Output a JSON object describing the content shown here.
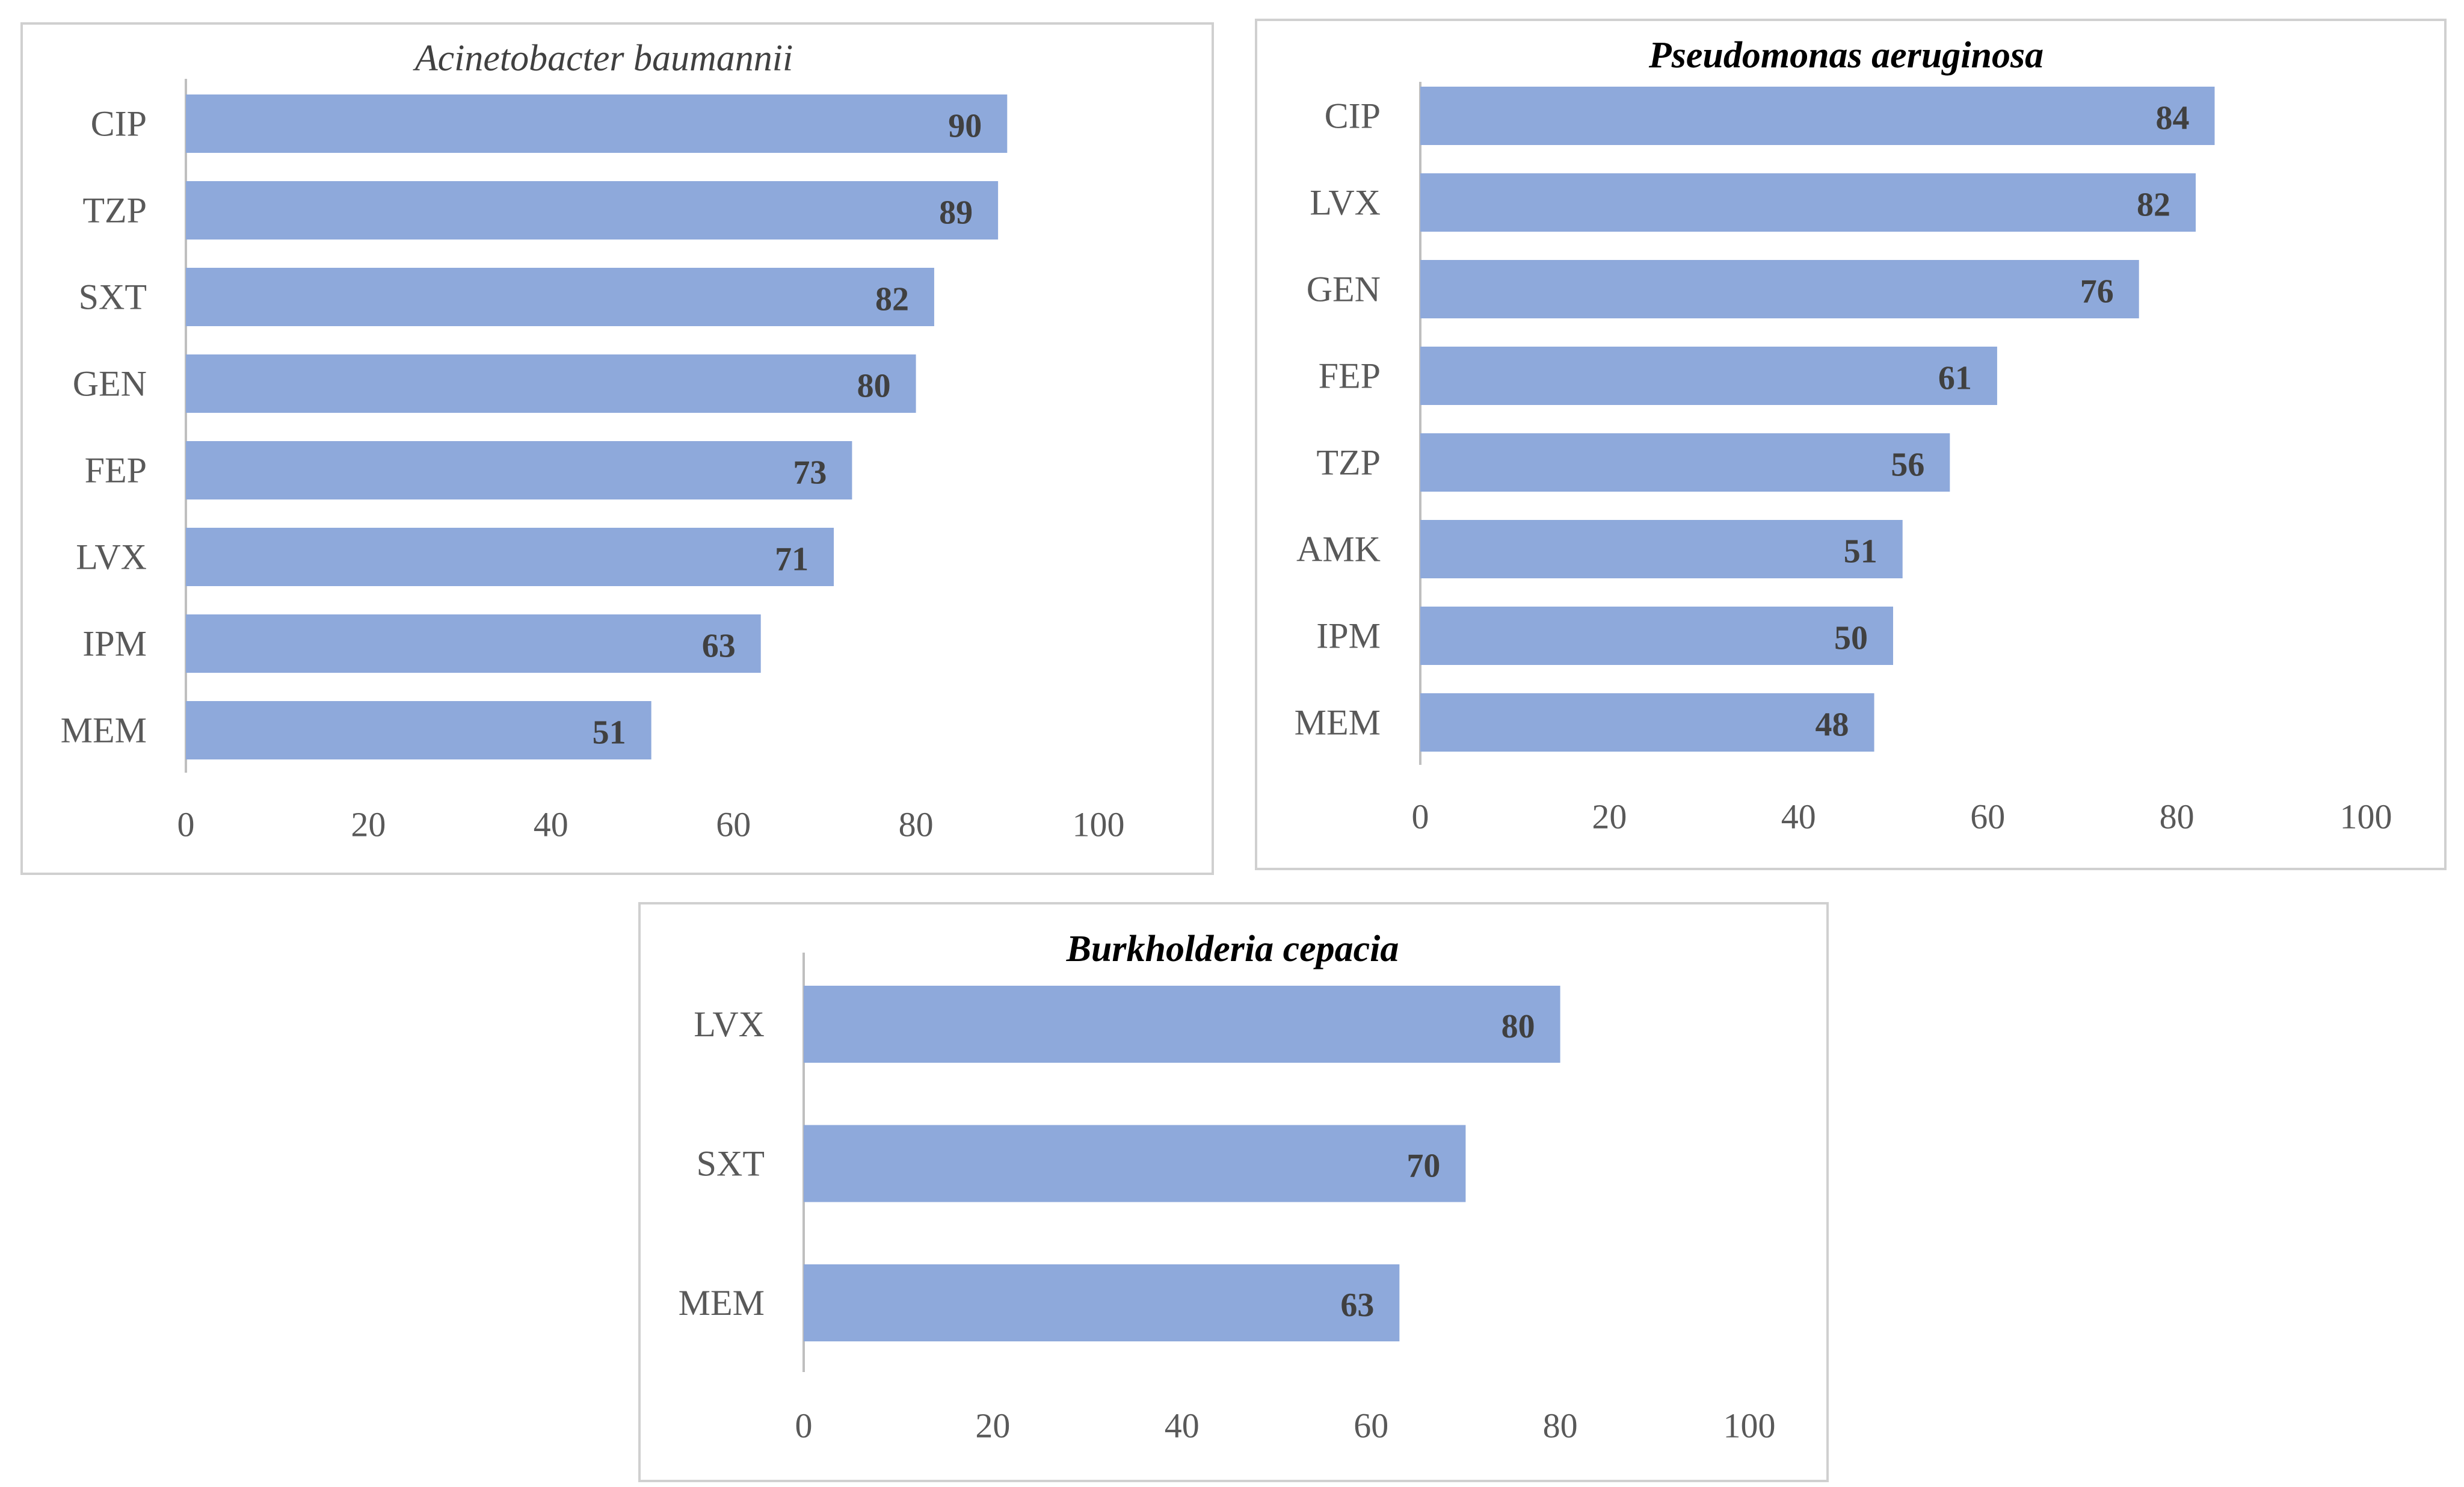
{
  "chart_data": [
    {
      "type": "bar",
      "orientation": "horizontal",
      "title": "Acinetobacter baumannii",
      "categories": [
        "CIP",
        "TZP",
        "SXT",
        "GEN",
        "FEP",
        "LVX",
        "IPM",
        "MEM"
      ],
      "values": [
        90,
        89,
        82,
        80,
        73,
        71,
        63,
        51
      ],
      "xlim": [
        0,
        100
      ],
      "xticks": [
        "0",
        "20",
        "40",
        "60",
        "80",
        "100"
      ],
      "xlabel": "",
      "ylabel": "",
      "grid": false,
      "data_labels": true
    },
    {
      "type": "bar",
      "orientation": "horizontal",
      "title": "Pseudomonas aeruginosa",
      "categories": [
        "CIP",
        "LVX",
        "GEN",
        "FEP",
        "TZP",
        "AMK",
        "IPM",
        "MEM"
      ],
      "values": [
        84,
        82,
        76,
        61,
        56,
        51,
        50,
        48
      ],
      "xlim": [
        0,
        100
      ],
      "xticks": [
        "0",
        "20",
        "40",
        "60",
        "80",
        "100"
      ],
      "xlabel": "",
      "ylabel": "",
      "grid": false,
      "data_labels": true
    },
    {
      "type": "bar",
      "orientation": "horizontal",
      "title": "Burkholderia cepacia",
      "categories": [
        "LVX",
        "SXT",
        "MEM"
      ],
      "values": [
        80,
        70,
        63
      ],
      "xlim": [
        0,
        100
      ],
      "xticks": [
        "0",
        "20",
        "40",
        "60",
        "80",
        "100"
      ],
      "xlabel": "",
      "ylabel": "",
      "grid": false,
      "data_labels": true
    }
  ],
  "colors": {
    "bar": "#8EA9DB",
    "axis": "#BFBFBF"
  }
}
